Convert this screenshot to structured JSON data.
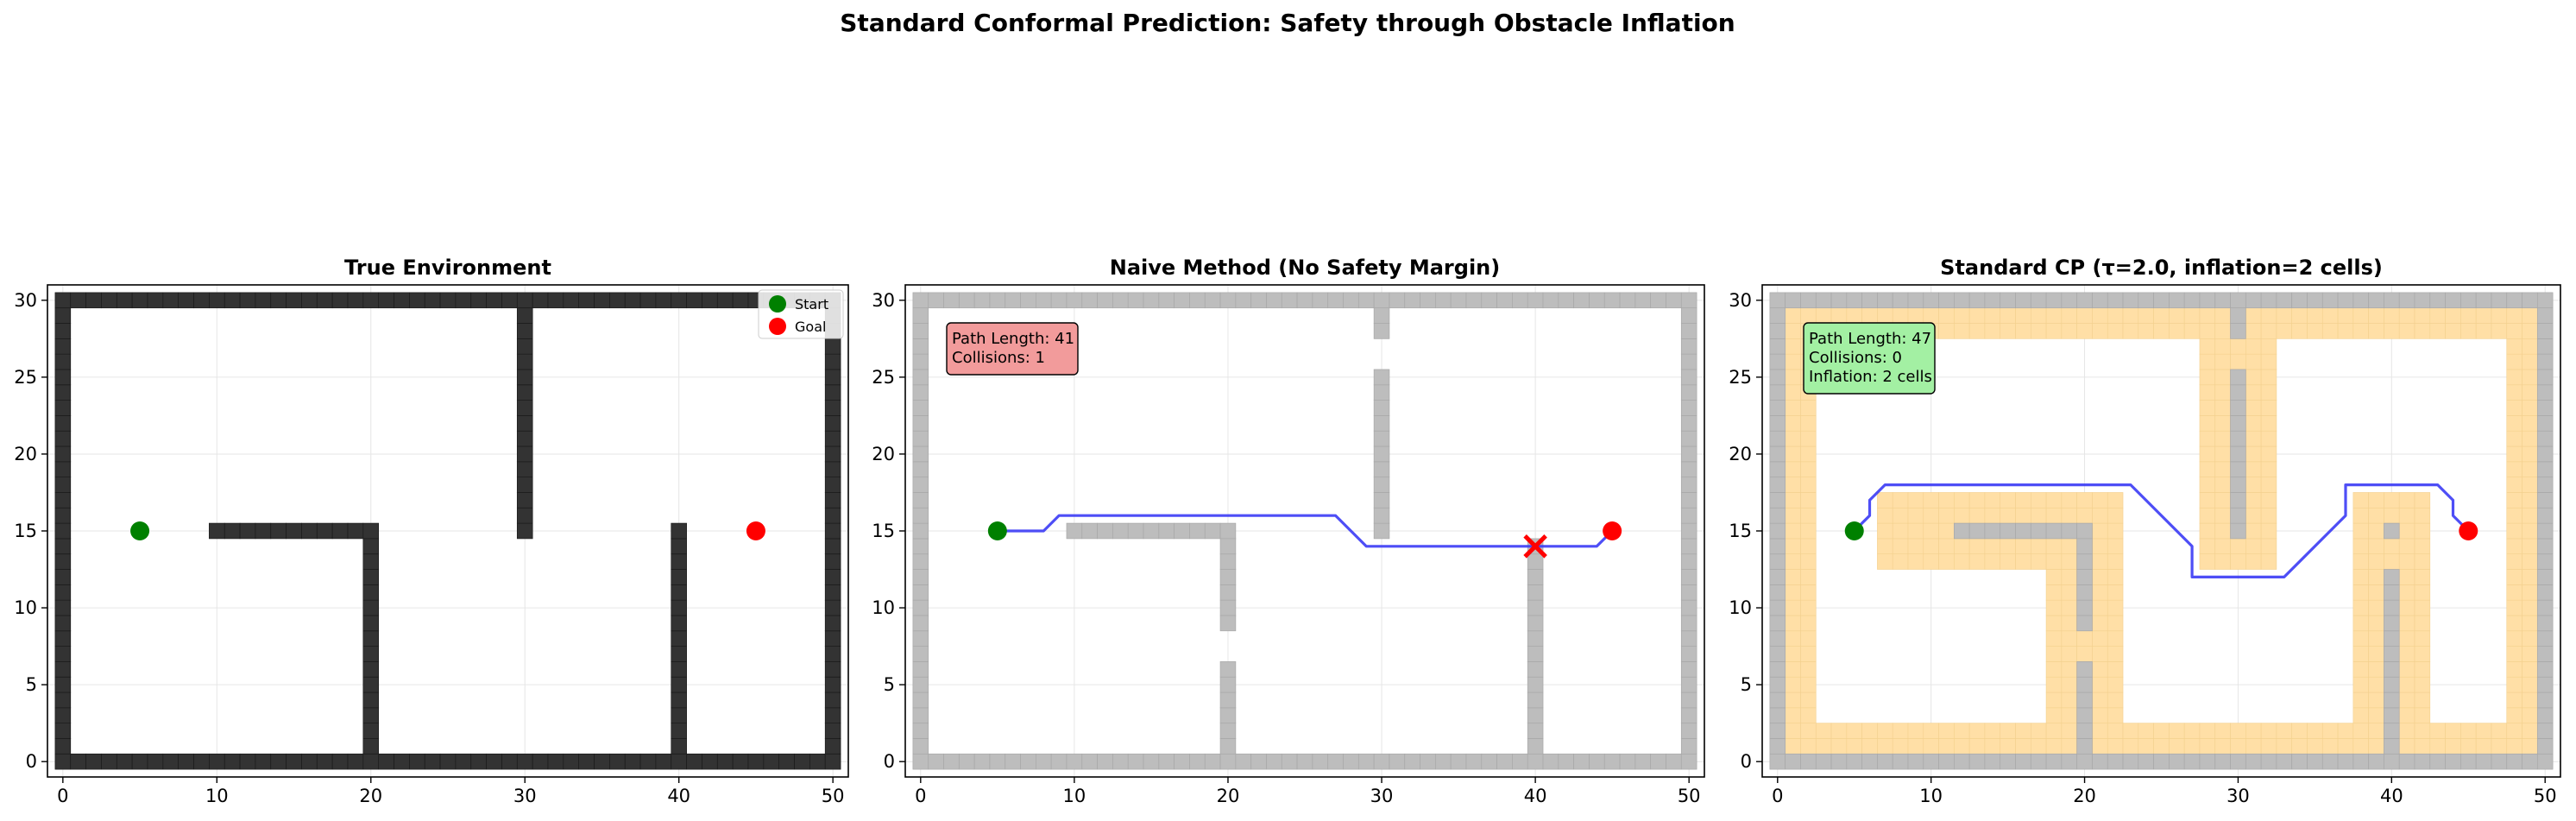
{
  "figure_title": "Standard Conformal Prediction: Safety through Obstacle Inflation",
  "colors": {
    "wall_true": "#333333",
    "wall_grey": "#bdbdbd",
    "inflation": "#ffdfa6",
    "path": "#3b3bf5",
    "start": "#008000",
    "goal": "#ff0000",
    "collision_marker": "#ff0000",
    "info_box_naive": "#f29b9b",
    "info_box_cp": "#a3f0a3"
  },
  "chart_data": [
    {
      "type": "grid-map",
      "title": "True Environment",
      "xlim": [
        -1,
        51
      ],
      "ylim": [
        -1,
        31
      ],
      "xticks": [
        "0",
        "10",
        "20",
        "30",
        "40",
        "50"
      ],
      "yticks": [
        "0",
        "5",
        "10",
        "15",
        "20",
        "25",
        "30"
      ],
      "grid": true,
      "legend": {
        "position": "top-right",
        "entries": [
          {
            "label": "Start",
            "color": "#008000"
          },
          {
            "label": "Goal",
            "color": "#ff0000"
          }
        ]
      },
      "start": [
        5,
        15
      ],
      "goal": [
        45,
        15
      ]
    },
    {
      "type": "grid-map",
      "title": "Naive Method (No Safety Margin)",
      "xlim": [
        -1,
        51
      ],
      "ylim": [
        -1,
        31
      ],
      "xticks": [
        "0",
        "10",
        "20",
        "30",
        "40",
        "50"
      ],
      "yticks": [
        "0",
        "5",
        "10",
        "15",
        "20",
        "25",
        "30"
      ],
      "grid": true,
      "start": [
        5,
        15
      ],
      "goal": [
        45,
        15
      ],
      "path": [
        [
          5,
          15
        ],
        [
          8,
          15
        ],
        [
          9,
          16
        ],
        [
          27,
          16
        ],
        [
          29,
          14
        ],
        [
          44,
          14
        ],
        [
          45,
          15
        ]
      ],
      "collision_point": [
        40,
        14
      ],
      "info": {
        "path_length": "Path Length: 41",
        "collisions": "Collisions: 1"
      }
    },
    {
      "type": "grid-map",
      "title": "Standard CP (τ=2.0, inflation=2 cells)",
      "xlim": [
        -1,
        51
      ],
      "ylim": [
        -1,
        31
      ],
      "xticks": [
        "0",
        "10",
        "20",
        "30",
        "40",
        "50"
      ],
      "yticks": [
        "0",
        "5",
        "10",
        "15",
        "20",
        "25",
        "30"
      ],
      "grid": true,
      "start": [
        5,
        15
      ],
      "goal": [
        45,
        15
      ],
      "tau": 2.0,
      "inflation_cells": 2,
      "path": [
        [
          5,
          15
        ],
        [
          6,
          16
        ],
        [
          6,
          17
        ],
        [
          7,
          18
        ],
        [
          23,
          18
        ],
        [
          27,
          14
        ],
        [
          27,
          12
        ],
        [
          33,
          12
        ],
        [
          37,
          16
        ],
        [
          37,
          18
        ],
        [
          43,
          18
        ],
        [
          44,
          17
        ],
        [
          44,
          16
        ],
        [
          45,
          15
        ]
      ],
      "info": {
        "path_length": "Path Length: 47",
        "collisions": "Collisions: 0",
        "inflation": "Inflation: 2 cells"
      }
    }
  ]
}
